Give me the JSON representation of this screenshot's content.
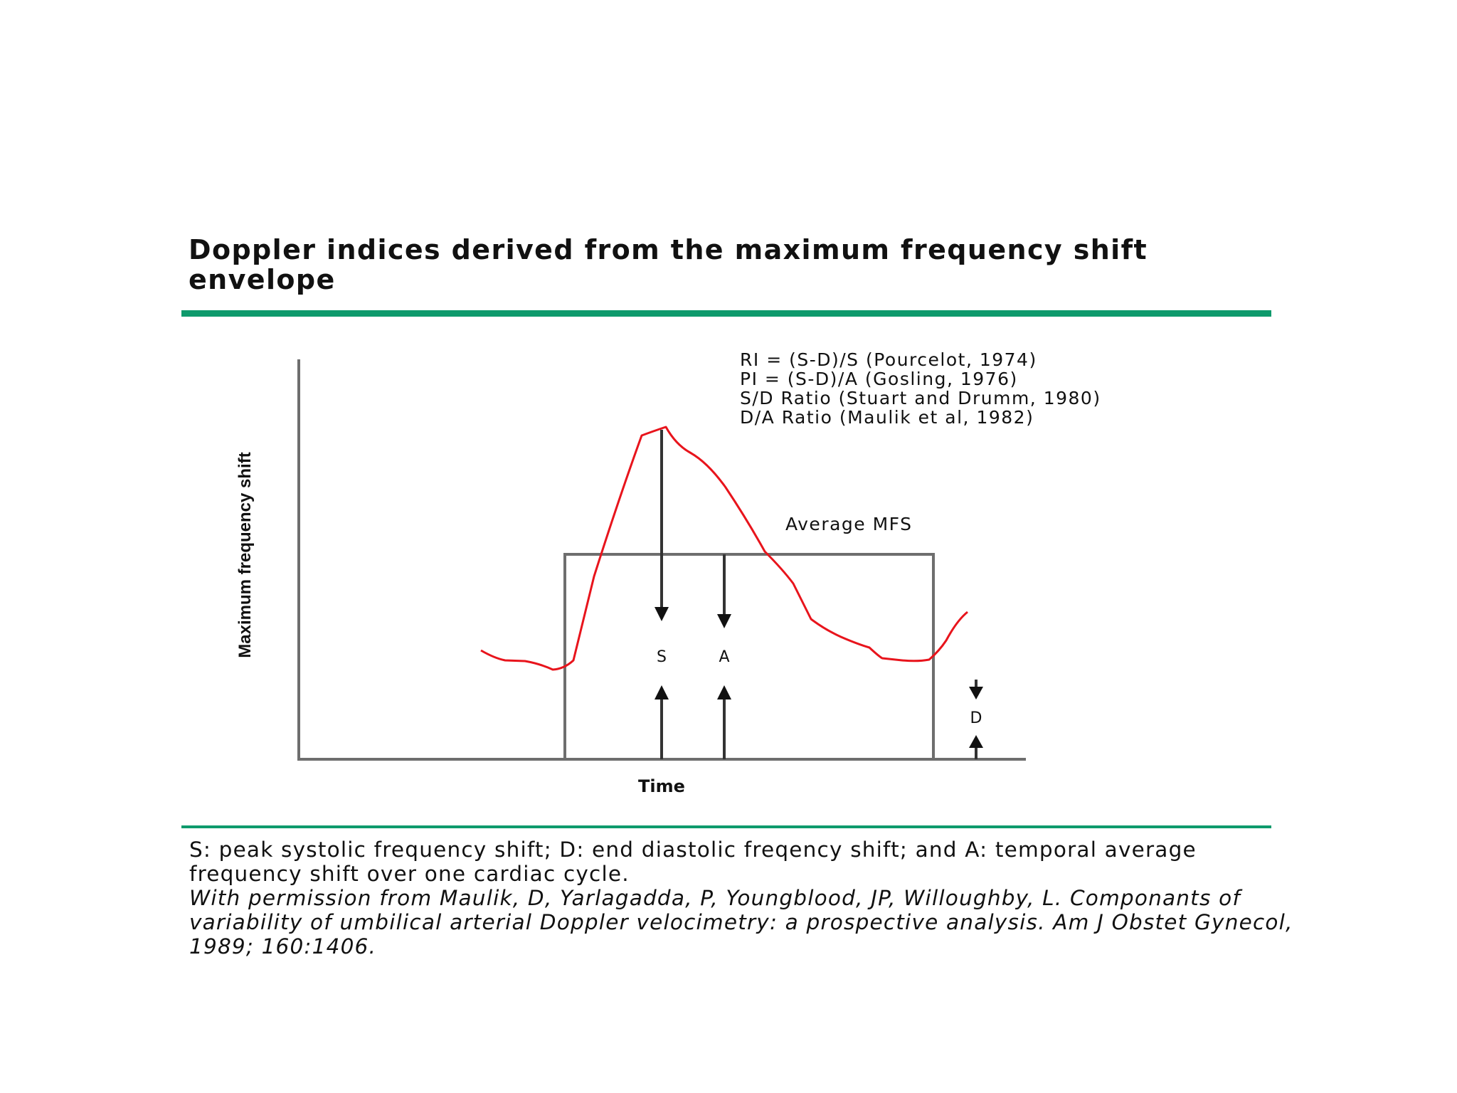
{
  "title": "Doppler indices derived from the maximum frequency shift envelope",
  "diagram": {
    "y_axis_label": "Maximum frequency shift",
    "x_axis_label": "Time",
    "indices": [
      "RI = (S-D)/S (Pourcelot, 1974)",
      "PI = (S-D)/A (Gosling, 1976)",
      "S/D Ratio (Stuart and Drumm, 1980)",
      "D/A Ratio (Maulik et al, 1982)"
    ],
    "average_label": "Average MFS",
    "marker_s": "S",
    "marker_a": "A",
    "marker_d": "D",
    "curve_color": "#e8141c",
    "axis_color": "#6e6e6e",
    "rule_color": "#0e9a6c"
  },
  "caption": {
    "definitions": "S: peak systolic frequency shift; D: end diastolic freqency shift; and A: temporal average frequency shift over one cardiac cycle.",
    "citation": "With permission from Maulik, D, Yarlagadda, P, Youngblood, JP, Willoughby, L. Componants of variability of umbilical arterial Doppler velocimetry: a prospective analysis. Am J Obstet Gynecol, 1989; 160:1406."
  }
}
